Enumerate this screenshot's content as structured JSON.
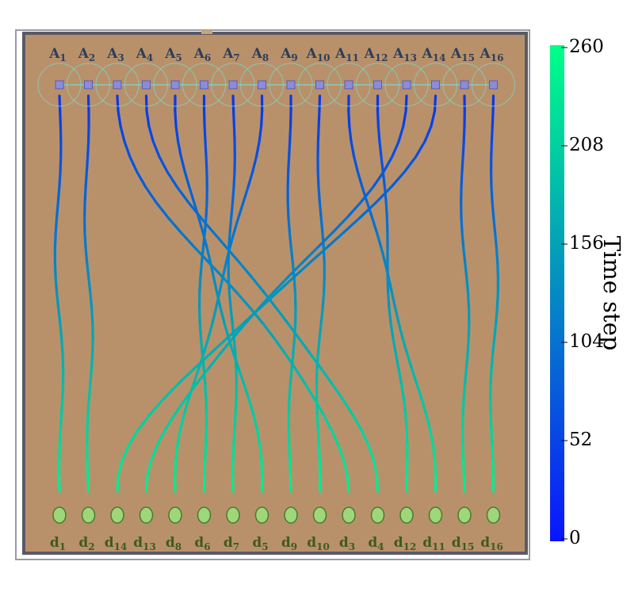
{
  "agents": [
    {
      "base": "A",
      "sub": "1"
    },
    {
      "base": "A",
      "sub": "2"
    },
    {
      "base": "A",
      "sub": "3"
    },
    {
      "base": "A",
      "sub": "4"
    },
    {
      "base": "A",
      "sub": "5"
    },
    {
      "base": "A",
      "sub": "6"
    },
    {
      "base": "A",
      "sub": "7"
    },
    {
      "base": "A",
      "sub": "8"
    },
    {
      "base": "A",
      "sub": "9"
    },
    {
      "base": "A",
      "sub": "10"
    },
    {
      "base": "A",
      "sub": "11"
    },
    {
      "base": "A",
      "sub": "12"
    },
    {
      "base": "A",
      "sub": "13"
    },
    {
      "base": "A",
      "sub": "14"
    },
    {
      "base": "A",
      "sub": "15"
    },
    {
      "base": "A",
      "sub": "16"
    }
  ],
  "destinations": [
    {
      "base": "d",
      "sub": "1"
    },
    {
      "base": "d",
      "sub": "2"
    },
    {
      "base": "d",
      "sub": "14"
    },
    {
      "base": "d",
      "sub": "13"
    },
    {
      "base": "d",
      "sub": "8"
    },
    {
      "base": "d",
      "sub": "6"
    },
    {
      "base": "d",
      "sub": "7"
    },
    {
      "base": "d",
      "sub": "5"
    },
    {
      "base": "d",
      "sub": "9"
    },
    {
      "base": "d",
      "sub": "10"
    },
    {
      "base": "d",
      "sub": "3"
    },
    {
      "base": "d",
      "sub": "4"
    },
    {
      "base": "d",
      "sub": "12"
    },
    {
      "base": "d",
      "sub": "11"
    },
    {
      "base": "d",
      "sub": "15"
    },
    {
      "base": "d",
      "sub": "16"
    }
  ],
  "assignment": [
    {
      "agent": 1,
      "dest": 1
    },
    {
      "agent": 2,
      "dest": 2
    },
    {
      "agent": 3,
      "dest": 3
    },
    {
      "agent": 4,
      "dest": 4
    },
    {
      "agent": 5,
      "dest": 5
    },
    {
      "agent": 6,
      "dest": 6
    },
    {
      "agent": 7,
      "dest": 7
    },
    {
      "agent": 8,
      "dest": 8
    },
    {
      "agent": 9,
      "dest": 9
    },
    {
      "agent": 10,
      "dest": 10
    },
    {
      "agent": 11,
      "dest": 11
    },
    {
      "agent": 12,
      "dest": 12
    },
    {
      "agent": 13,
      "dest": 13
    },
    {
      "agent": 14,
      "dest": 14
    },
    {
      "agent": 15,
      "dest": 15
    },
    {
      "agent": 16,
      "dest": 16
    }
  ],
  "colorbar": {
    "title": "Time step",
    "min": 0,
    "max": 260,
    "ticks": [
      "0",
      "52",
      "104",
      "156",
      "208",
      "260"
    ],
    "color_low": "#0a14ff",
    "color_high": "#00ff88"
  },
  "colors": {
    "arena": "#b8916b",
    "border": "#5a5a66",
    "agent_marker": "#8c8cd8",
    "destination_fill": "#9fd67a",
    "destination_stroke": "#4a7a2a",
    "sensing_circle": "#7fd6c8"
  }
}
